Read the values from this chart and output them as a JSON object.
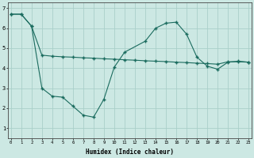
{
  "line1_x": [
    0,
    1,
    2,
    3,
    4,
    5,
    6,
    7,
    8,
    9,
    10,
    11,
    13,
    14,
    15,
    16,
    17,
    18,
    19,
    20,
    21,
    22,
    23
  ],
  "line1_y": [
    6.7,
    6.7,
    6.1,
    3.0,
    2.6,
    2.55,
    2.1,
    1.65,
    1.55,
    2.45,
    4.05,
    4.8,
    5.35,
    6.0,
    6.25,
    6.3,
    5.7,
    4.55,
    4.1,
    3.95,
    4.3,
    4.35,
    4.3
  ],
  "line2_x": [
    0,
    1,
    2,
    3,
    4,
    5,
    6,
    7,
    8,
    9,
    10,
    11,
    12,
    13,
    14,
    15,
    16,
    17,
    18,
    19,
    20,
    21,
    22,
    23
  ],
  "line2_y": [
    6.7,
    6.7,
    6.1,
    4.65,
    4.6,
    4.57,
    4.55,
    4.52,
    4.5,
    4.47,
    4.45,
    4.42,
    4.4,
    4.37,
    4.35,
    4.33,
    4.3,
    4.28,
    4.25,
    4.23,
    4.2,
    4.32,
    4.32,
    4.3
  ],
  "line_color": "#1a6b5e",
  "bg_color": "#cce8e3",
  "grid_color": "#aacfc9",
  "xlabel": "Humidex (Indice chaleur)",
  "ylim": [
    0.5,
    7.3
  ],
  "xlim": [
    -0.3,
    23.3
  ],
  "yticks": [
    1,
    2,
    3,
    4,
    5,
    6,
    7
  ],
  "xticks": [
    0,
    1,
    2,
    3,
    4,
    5,
    6,
    7,
    8,
    9,
    10,
    11,
    12,
    13,
    14,
    15,
    16,
    17,
    18,
    19,
    20,
    21,
    22,
    23
  ]
}
